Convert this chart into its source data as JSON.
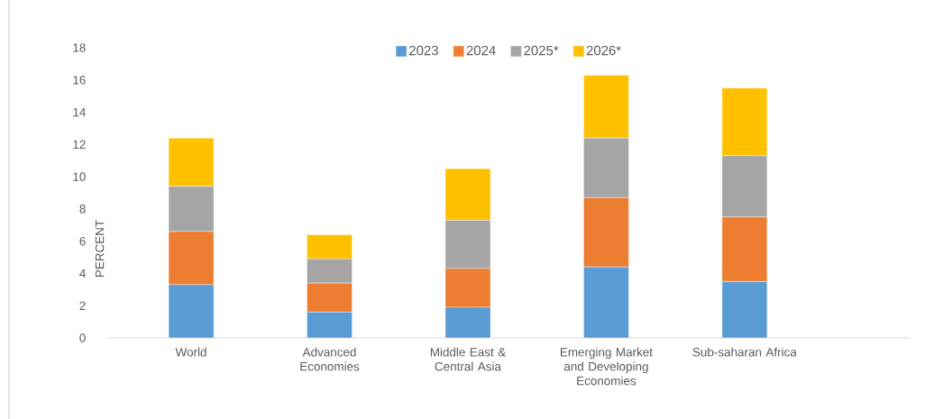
{
  "chart_data": {
    "type": "bar",
    "stacked": true,
    "ylabel": "PERCENT",
    "categories": [
      "World",
      "Advanced Economies",
      "Middle East & Central Asia",
      "Emerging Market and Developing Economies",
      "Sub-saharan Africa"
    ],
    "series": [
      {
        "name": "2023",
        "color": "#5b9bd5",
        "values": [
          3.3,
          1.6,
          1.9,
          4.4,
          3.5
        ]
      },
      {
        "name": "2024",
        "color": "#ed7d31",
        "values": [
          3.3,
          1.8,
          2.4,
          4.3,
          4.0
        ]
      },
      {
        "name": "2025*",
        "color": "#a5a5a5",
        "values": [
          2.8,
          1.5,
          3.0,
          3.7,
          3.8
        ]
      },
      {
        "name": "2026*",
        "color": "#ffc000",
        "values": [
          3.0,
          1.5,
          3.2,
          3.9,
          4.2
        ]
      }
    ],
    "ylim": [
      0,
      18
    ],
    "yticks": [
      0,
      2,
      4,
      6,
      8,
      10,
      12,
      14,
      16,
      18
    ],
    "grid": false,
    "legend": "top"
  }
}
